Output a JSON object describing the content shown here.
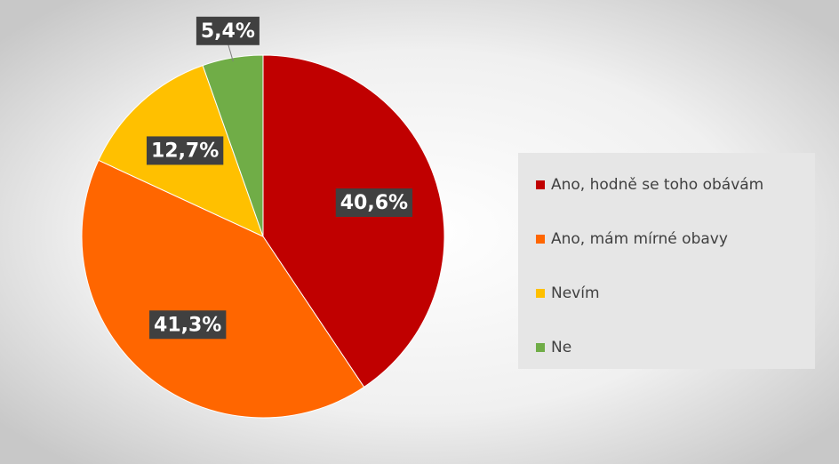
{
  "chart_data": {
    "type": "pie",
    "categories": [
      "Ano, hodně se toho obávám",
      "Ano, mám mírné obavy",
      "Nevím",
      "Ne"
    ],
    "values": [
      40.6,
      41.3,
      12.7,
      5.4
    ],
    "value_labels": [
      "40,6%",
      "41,3%",
      "12,7%",
      "5,4%"
    ],
    "colors": [
      "#c00000",
      "#ff6600",
      "#ffc000",
      "#70ad47"
    ],
    "legend": "right"
  }
}
